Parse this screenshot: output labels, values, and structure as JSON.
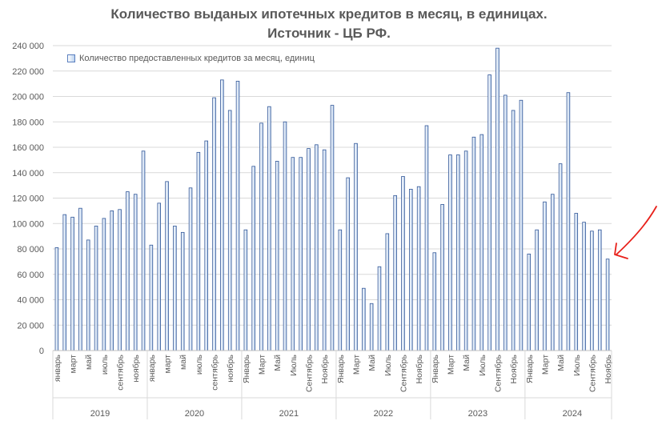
{
  "chart_data": {
    "type": "bar",
    "title_line1": "Количество выданых ипотечных кредитов в месяц, в единицах.",
    "title_line2": "Источник - ЦБ РФ.",
    "legend_label": "Количество предоставленных кредитов за месяц, единиц",
    "ylim": [
      0,
      240000
    ],
    "yticks": [
      "0",
      "20 000",
      "40 000",
      "60 000",
      "80 000",
      "100 000",
      "120 000",
      "140 000",
      "160 000",
      "180 000",
      "200 000",
      "220 000",
      "240 000"
    ],
    "grid": true,
    "legend_position": "top-left",
    "bar_color": "#bcd2ee",
    "bar_border_color": "#2f5597",
    "annotation_color": "#e8201a",
    "years": [
      {
        "year": "2019",
        "labels": [
          "январь",
          "",
          "март",
          "",
          "май",
          "",
          "июль",
          "",
          "сентябрь",
          "",
          "ноябрь",
          ""
        ],
        "values": [
          81000,
          107000,
          105000,
          112000,
          87000,
          98000,
          104000,
          110000,
          111000,
          125000,
          123000,
          157000
        ]
      },
      {
        "year": "2020",
        "labels": [
          "январь",
          "",
          "март",
          "",
          "май",
          "",
          "июль",
          "",
          "сентябрь",
          "",
          "ноябрь",
          ""
        ],
        "values": [
          83000,
          116000,
          133000,
          98000,
          93000,
          128000,
          156000,
          165000,
          199000,
          213000,
          189000,
          212000
        ]
      },
      {
        "year": "2021",
        "labels": [
          "Январь",
          "",
          "Март",
          "",
          "Май",
          "",
          "Июль",
          "",
          "Сентябрь",
          "",
          "Ноябрь",
          ""
        ],
        "values": [
          95000,
          145000,
          179000,
          192000,
          149000,
          180000,
          152000,
          152000,
          159000,
          162000,
          158000,
          193000
        ]
      },
      {
        "year": "2022",
        "labels": [
          "Январь",
          "",
          "Март",
          "",
          "Май",
          "",
          "Июль",
          "",
          "Сентябрь",
          "",
          "Ноябрь",
          ""
        ],
        "values": [
          95000,
          136000,
          163000,
          49000,
          37000,
          66000,
          92000,
          122000,
          137000,
          127000,
          129000,
          177000
        ]
      },
      {
        "year": "2023",
        "labels": [
          "Январь",
          "",
          "Март",
          "",
          "Май",
          "",
          "Июль",
          "",
          "Сентябрь",
          "",
          "Ноябрь",
          ""
        ],
        "values": [
          77000,
          115000,
          154000,
          154000,
          157000,
          168000,
          170000,
          217000,
          238000,
          201000,
          189000,
          197000
        ]
      },
      {
        "year": "2024",
        "labels": [
          "Январь",
          "",
          "Март",
          "",
          "Май",
          "",
          "Июль",
          "",
          "Сентябрь",
          "",
          "Ноябрь"
        ],
        "values": [
          76000,
          95000,
          117000,
          123000,
          147000,
          203000,
          108000,
          101000,
          94000,
          95000,
          72000
        ]
      }
    ]
  }
}
